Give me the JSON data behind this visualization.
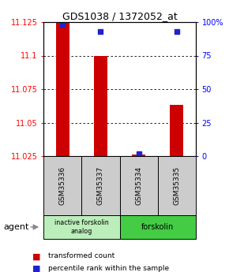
{
  "title": "GDS1038 / 1372052_at",
  "samples": [
    "GSM35336",
    "GSM35337",
    "GSM35334",
    "GSM35335"
  ],
  "transformed_counts": [
    11.125,
    11.1,
    11.026,
    11.063
  ],
  "percentile_ranks": [
    98,
    93,
    2,
    93
  ],
  "ymin": 11.025,
  "ymax": 11.125,
  "yticks": [
    11.025,
    11.05,
    11.075,
    11.1,
    11.125
  ],
  "ytick_labels": [
    "11.025",
    "11.05",
    "11.075",
    "11.1",
    "11.125"
  ],
  "right_yticks": [
    0,
    25,
    50,
    75,
    100
  ],
  "right_ytick_labels": [
    "0",
    "25",
    "50",
    "75",
    "100%"
  ],
  "bar_color": "#cc0000",
  "dot_color": "#2222cc",
  "groups": [
    {
      "label": "inactive forskolin\nanalog",
      "color": "#bbeebb",
      "samples": [
        0,
        1
      ]
    },
    {
      "label": "forskolin",
      "color": "#44cc44",
      "samples": [
        2,
        3
      ]
    }
  ],
  "agent_label": "agent",
  "legend_red": "transformed count",
  "legend_blue": "percentile rank within the sample",
  "bar_width": 0.35,
  "base_value": 11.025
}
